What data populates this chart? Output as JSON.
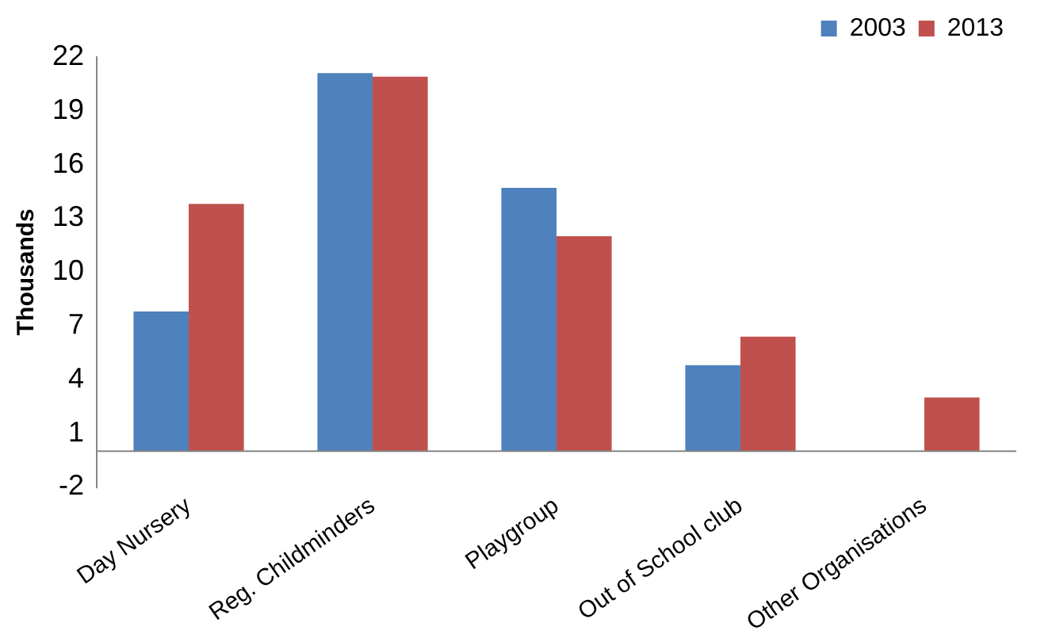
{
  "chart_data": {
    "type": "bar",
    "ylabel": "Thousands",
    "categories": [
      "Day Nursery",
      "Reg. Childminders",
      "Playgroup",
      "Out of School club",
      "Other Organisations"
    ],
    "series": [
      {
        "name": "2003",
        "color": "#4f81bd",
        "values": [
          7.8,
          21.1,
          14.7,
          4.8,
          null
        ]
      },
      {
        "name": "2013",
        "color": "#c0504d",
        "values": [
          13.8,
          20.9,
          12.0,
          6.4,
          3.0
        ]
      }
    ],
    "ylim": [
      -2,
      22
    ],
    "yticks": [
      -2,
      1,
      4,
      7,
      10,
      13,
      16,
      19,
      22
    ],
    "grid": false,
    "legend": "top right"
  }
}
